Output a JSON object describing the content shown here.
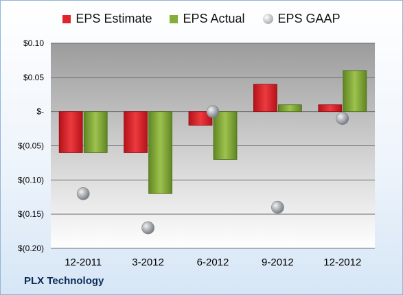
{
  "chart_data": {
    "type": "bar",
    "categories": [
      "12-2011",
      "3-2012",
      "6-2012",
      "9-2012",
      "12-2012"
    ],
    "series": [
      {
        "name": "EPS Estimate",
        "kind": "bar",
        "color": "#e0242b",
        "values": [
          -0.06,
          -0.06,
          -0.02,
          0.04,
          0.01
        ]
      },
      {
        "name": "EPS Actual",
        "kind": "bar",
        "color": "#86ad3a",
        "values": [
          -0.06,
          -0.12,
          -0.07,
          0.01,
          0.06
        ]
      },
      {
        "name": "EPS GAAP",
        "kind": "marker",
        "color": "#b9bcc0",
        "values": [
          -0.12,
          -0.17,
          0.0,
          -0.14,
          -0.01
        ]
      }
    ],
    "yticks": [
      {
        "value": 0.1,
        "label": "$0.10"
      },
      {
        "value": 0.05,
        "label": "$0.05"
      },
      {
        "value": 0.0,
        "label": "$-"
      },
      {
        "value": -0.05,
        "label": "$(0.05)"
      },
      {
        "value": -0.1,
        "label": "$(0.10)"
      },
      {
        "value": -0.15,
        "label": "$(0.15)"
      },
      {
        "value": -0.2,
        "label": "$(0.20)"
      }
    ],
    "ylim": [
      -0.2,
      0.1
    ],
    "grid": true,
    "legend_position": "top",
    "footer": "PLX Technology"
  }
}
